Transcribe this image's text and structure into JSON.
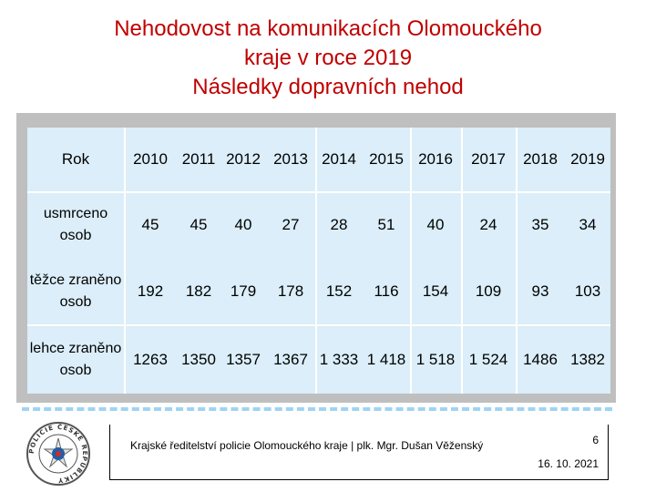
{
  "title": {
    "line1": "Nehodovost na komunikacích Olomouckého",
    "line2": "kraje v roce 2019",
    "line3": "Následky dopravních nehod"
  },
  "table": {
    "header_label": "Rok",
    "years": [
      "2010",
      "2011",
      "2012",
      "2013",
      "2014",
      "2015",
      "2016",
      "2017",
      "2018",
      "2019"
    ],
    "rows": [
      {
        "label": "usmrceno osob",
        "values": [
          "45",
          "45",
          "40",
          "27",
          "28",
          "51",
          "40",
          "24",
          "35",
          "34"
        ]
      },
      {
        "label": "těžce zraněno osob",
        "values": [
          "192",
          "182",
          "179",
          "178",
          "152",
          "116",
          "154",
          "109",
          "93",
          "103"
        ]
      },
      {
        "label": "lehce zraněno osob",
        "values": [
          "1263",
          "1350",
          "1357",
          "1367",
          "1 333",
          "1 418",
          "1 518",
          "1 524",
          "1486",
          "1382"
        ]
      }
    ]
  },
  "footer": {
    "text": "Krajské ředitelství policie Olomouckého kraje | plk. Mgr. Dušan Věženský",
    "page_number": "6",
    "date": "16. 10. 2021",
    "emblem_text": "POLICIE ČESKÉ REPUBLIKY",
    "emblem_icon": "police-badge-icon"
  },
  "colors": {
    "title": "#c00000",
    "table_bg": "#dbeef9",
    "frame": "#bfbfbf"
  }
}
